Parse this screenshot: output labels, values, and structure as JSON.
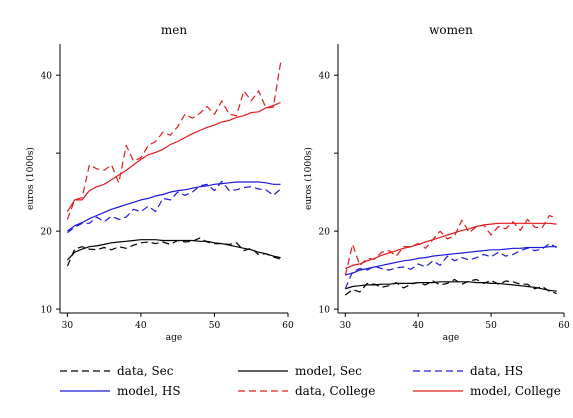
{
  "chart_data": {
    "type": "line",
    "ylabel": "euros (1000s)",
    "xlabel": "age",
    "xlim": [
      29,
      60
    ],
    "ylim": [
      9.5,
      44
    ],
    "xticks": [
      30,
      40,
      50,
      60
    ],
    "yticks": [
      10,
      20,
      30,
      40
    ],
    "ytick_labels_visible": [
      10,
      20,
      40
    ],
    "legend_placement": "bottom",
    "legend": [
      {
        "label": "data, Sec",
        "color": "#000000",
        "dash": "dashed"
      },
      {
        "label": "model, Sec",
        "color": "#000000",
        "dash": "solid"
      },
      {
        "label": "data, HS",
        "color": "#1a1adc",
        "dash": "dashed"
      },
      {
        "label": "model, HS",
        "color": "#1a1adc",
        "dash": "solid"
      },
      {
        "label": "data, College",
        "color": "#e31a1c",
        "dash": "dashed"
      },
      {
        "label": "model, College",
        "color": "#e31a1c",
        "dash": "solid"
      }
    ],
    "panels": [
      {
        "title": "men",
        "series": [
          {
            "name": "data, Sec",
            "color": "#000000",
            "dash": "dashed",
            "x": [
              30,
              31,
              32,
              33,
              34,
              35,
              36,
              37,
              38,
              39,
              40,
              41,
              42,
              43,
              44,
              45,
              46,
              47,
              48,
              49,
              50,
              51,
              52,
              53,
              54,
              55,
              56,
              57,
              58,
              59
            ],
            "values": [
              15.5,
              17.7,
              18.0,
              17.7,
              17.6,
              17.9,
              17.6,
              18.0,
              17.8,
              18.2,
              18.5,
              18.6,
              18.4,
              18.6,
              18.3,
              18.8,
              18.6,
              18.7,
              19.1,
              18.6,
              18.4,
              18.4,
              18.3,
              18.5,
              17.5,
              17.8,
              17.0,
              17.1,
              16.7,
              16.4
            ]
          },
          {
            "name": "model, Sec",
            "color": "#000000",
            "dash": "solid",
            "x": [
              30,
              31,
              32,
              33,
              34,
              35,
              36,
              37,
              38,
              39,
              40,
              41,
              42,
              43,
              44,
              45,
              46,
              47,
              48,
              49,
              50,
              51,
              52,
              53,
              54,
              55,
              56,
              57,
              58,
              59
            ],
            "values": [
              16.3,
              17.3,
              17.7,
              18.0,
              18.1,
              18.3,
              18.5,
              18.6,
              18.7,
              18.8,
              18.9,
              18.9,
              18.9,
              18.8,
              18.8,
              18.8,
              18.8,
              18.8,
              18.7,
              18.7,
              18.5,
              18.4,
              18.2,
              18.0,
              17.8,
              17.6,
              17.3,
              17.1,
              16.8,
              16.6
            ]
          },
          {
            "name": "data, HS",
            "color": "#1a1adc",
            "dash": "dashed",
            "x": [
              30,
              31,
              32,
              33,
              34,
              35,
              36,
              37,
              38,
              39,
              40,
              41,
              42,
              43,
              44,
              45,
              46,
              47,
              48,
              49,
              50,
              51,
              52,
              53,
              54,
              55,
              56,
              57,
              58,
              59
            ],
            "values": [
              19.8,
              20.5,
              21.0,
              21.0,
              21.8,
              21.2,
              21.9,
              21.5,
              21.8,
              22.8,
              22.5,
              23.2,
              22.5,
              24.2,
              24.0,
              25.0,
              24.6,
              25.0,
              25.8,
              26.0,
              25.2,
              26.4,
              25.2,
              25.3,
              25.6,
              25.7,
              25.4,
              25.3,
              24.6,
              25.4
            ]
          },
          {
            "name": "model, HS",
            "color": "#1a1adc",
            "dash": "solid",
            "x": [
              30,
              31,
              32,
              33,
              34,
              35,
              36,
              37,
              38,
              39,
              40,
              41,
              42,
              43,
              44,
              45,
              46,
              47,
              48,
              49,
              50,
              51,
              52,
              53,
              54,
              55,
              56,
              57,
              58,
              59
            ],
            "values": [
              20.0,
              20.7,
              21.1,
              21.6,
              22.0,
              22.4,
              22.8,
              23.1,
              23.4,
              23.7,
              24.0,
              24.2,
              24.5,
              24.7,
              25.0,
              25.2,
              25.3,
              25.5,
              25.7,
              25.8,
              26.0,
              26.1,
              26.2,
              26.3,
              26.3,
              26.3,
              26.3,
              26.2,
              26.0,
              26.0
            ]
          },
          {
            "name": "data, College",
            "color": "#e31a1c",
            "dash": "dashed",
            "x": [
              30,
              31,
              32,
              33,
              34,
              35,
              36,
              37,
              38,
              39,
              40,
              41,
              42,
              43,
              44,
              45,
              46,
              47,
              48,
              49,
              50,
              51,
              52,
              53,
              54,
              55,
              56,
              57,
              58,
              59
            ],
            "values": [
              21.5,
              24.0,
              24.3,
              28.5,
              28.0,
              27.8,
              28.5,
              26.2,
              31.0,
              29.0,
              29.4,
              31.0,
              31.5,
              32.7,
              32.3,
              33.4,
              35.0,
              34.5,
              35.1,
              36.0,
              35.0,
              36.7,
              35.0,
              34.8,
              38.0,
              36.7,
              38.0,
              35.8,
              35.9,
              41.6
            ]
          },
          {
            "name": "model, College",
            "color": "#e31a1c",
            "dash": "solid",
            "x": [
              30,
              31,
              32,
              33,
              34,
              35,
              36,
              37,
              38,
              39,
              40,
              41,
              42,
              43,
              44,
              45,
              46,
              47,
              48,
              49,
              50,
              51,
              52,
              53,
              54,
              55,
              56,
              57,
              58,
              59
            ],
            "values": [
              22.5,
              24.0,
              24.0,
              25.2,
              25.7,
              26.0,
              26.6,
              27.2,
              27.8,
              28.5,
              29.2,
              29.8,
              30.1,
              30.5,
              31.1,
              31.5,
              32.0,
              32.5,
              32.9,
              33.3,
              33.6,
              34.0,
              34.2,
              34.6,
              34.8,
              35.2,
              35.3,
              35.8,
              36.1,
              36.5
            ]
          }
        ]
      },
      {
        "title": "women",
        "series": [
          {
            "name": "data, Sec",
            "color": "#000000",
            "dash": "dashed",
            "x": [
              30,
              31,
              32,
              33,
              34,
              35,
              36,
              37,
              38,
              39,
              40,
              41,
              42,
              43,
              44,
              45,
              46,
              47,
              48,
              49,
              50,
              51,
              52,
              53,
              54,
              55,
              56,
              57,
              58,
              59
            ],
            "values": [
              11.8,
              12.5,
              12.2,
              13.3,
              13.2,
              12.8,
              13.0,
              13.4,
              12.7,
              13.2,
              13.4,
              13.1,
              13.6,
              13.1,
              13.3,
              13.8,
              13.2,
              13.6,
              13.8,
              13.3,
              13.7,
              13.2,
              13.6,
              13.5,
              13.2,
              13.2,
              12.6,
              12.9,
              12.3,
              12.0
            ]
          },
          {
            "name": "model, Sec",
            "color": "#000000",
            "dash": "solid",
            "x": [
              30,
              31,
              32,
              33,
              34,
              35,
              36,
              37,
              38,
              39,
              40,
              41,
              42,
              43,
              44,
              45,
              46,
              47,
              48,
              49,
              50,
              51,
              52,
              53,
              54,
              55,
              56,
              57,
              58,
              59
            ],
            "values": [
              12.6,
              12.9,
              13.0,
              13.1,
              13.1,
              13.2,
              13.2,
              13.3,
              13.3,
              13.3,
              13.4,
              13.4,
              13.4,
              13.5,
              13.5,
              13.5,
              13.5,
              13.5,
              13.4,
              13.4,
              13.3,
              13.3,
              13.2,
              13.1,
              13.0,
              12.9,
              12.8,
              12.6,
              12.4,
              12.3
            ]
          },
          {
            "name": "data, HS",
            "color": "#1a1adc",
            "dash": "dashed",
            "x": [
              30,
              31,
              32,
              33,
              34,
              35,
              36,
              37,
              38,
              39,
              40,
              41,
              42,
              43,
              44,
              45,
              46,
              47,
              48,
              49,
              50,
              51,
              52,
              53,
              54,
              55,
              56,
              57,
              58,
              59
            ],
            "values": [
              12.6,
              14.8,
              15.2,
              15.0,
              15.5,
              15.2,
              15.0,
              15.3,
              15.4,
              15.1,
              15.8,
              15.4,
              16.2,
              15.6,
              16.8,
              16.2,
              16.6,
              16.3,
              16.6,
              17.0,
              16.7,
              17.3,
              16.8,
              17.0,
              17.5,
              17.8,
              17.5,
              17.7,
              18.4,
              17.9
            ]
          },
          {
            "name": "model, HS",
            "color": "#1a1adc",
            "dash": "solid",
            "x": [
              30,
              31,
              32,
              33,
              34,
              35,
              36,
              37,
              38,
              39,
              40,
              41,
              42,
              43,
              44,
              45,
              46,
              47,
              48,
              49,
              50,
              51,
              52,
              53,
              54,
              55,
              56,
              57,
              58,
              59
            ],
            "values": [
              14.4,
              14.6,
              15.0,
              15.2,
              15.4,
              15.6,
              15.8,
              16.0,
              16.2,
              16.3,
              16.5,
              16.6,
              16.8,
              16.9,
              17.0,
              17.1,
              17.2,
              17.3,
              17.4,
              17.5,
              17.6,
              17.6,
              17.7,
              17.8,
              17.8,
              17.9,
              17.9,
              17.9,
              18.0,
              18.0
            ]
          },
          {
            "name": "data, College",
            "color": "#e31a1c",
            "dash": "dashed",
            "x": [
              30,
              31,
              32,
              33,
              34,
              35,
              36,
              37,
              38,
              39,
              40,
              41,
              42,
              43,
              44,
              45,
              46,
              47,
              48,
              49,
              50,
              51,
              52,
              53,
              54,
              55,
              56,
              57,
              58,
              59
            ],
            "values": [
              14.3,
              18.3,
              15.6,
              16.5,
              16.4,
              17.3,
              17.5,
              16.8,
              18.0,
              18.0,
              18.4,
              17.8,
              18.9,
              20.0,
              19.0,
              19.4,
              21.4,
              19.8,
              20.6,
              20.8,
              19.5,
              20.6,
              20.3,
              21.2,
              20.1,
              21.5,
              20.5,
              20.4,
              22.0,
              21.6
            ]
          },
          {
            "name": "model, College",
            "color": "#e31a1c",
            "dash": "solid",
            "x": [
              30,
              31,
              32,
              33,
              34,
              35,
              36,
              37,
              38,
              39,
              40,
              41,
              42,
              43,
              44,
              45,
              46,
              47,
              48,
              49,
              50,
              51,
              52,
              53,
              54,
              55,
              56,
              57,
              58,
              59
            ],
            "values": [
              15.2,
              15.6,
              15.8,
              16.2,
              16.5,
              16.9,
              17.2,
              17.5,
              17.8,
              18.0,
              18.3,
              18.6,
              18.9,
              19.2,
              19.5,
              19.8,
              20.1,
              20.3,
              20.6,
              20.8,
              20.9,
              21.0,
              21.0,
              21.0,
              21.0,
              21.0,
              21.0,
              21.0,
              21.0,
              20.9
            ]
          }
        ]
      }
    ]
  }
}
